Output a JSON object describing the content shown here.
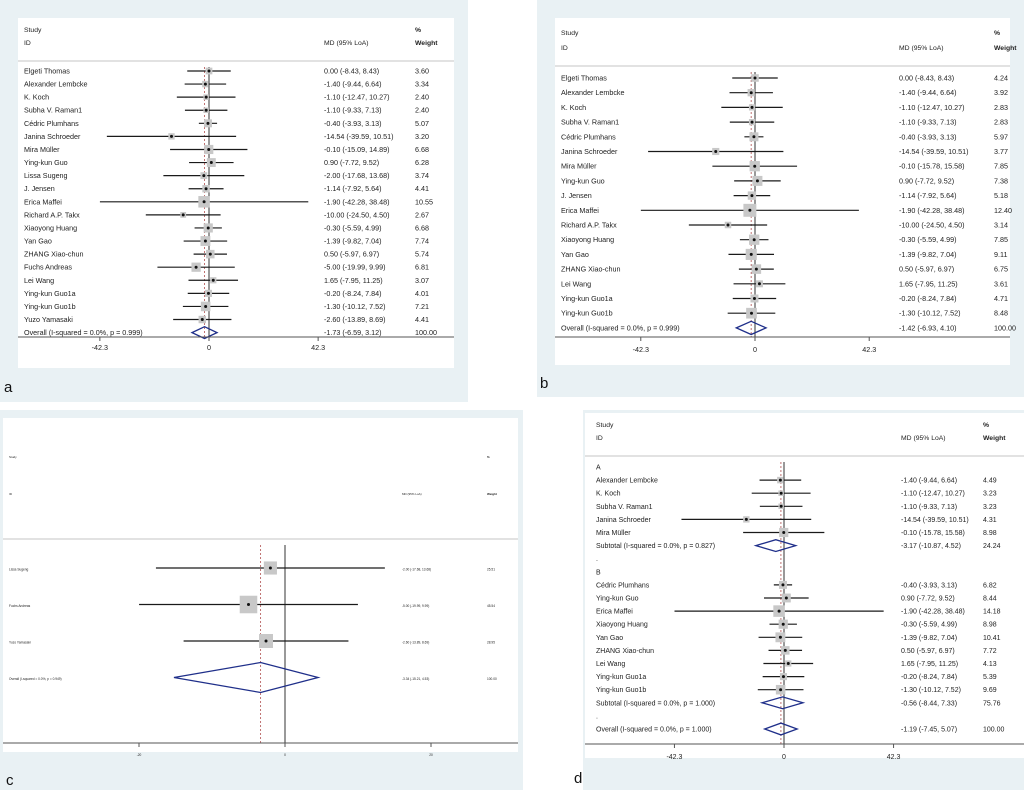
{
  "chart_data": [
    {
      "type": "forest",
      "panel_label": "a",
      "header": {
        "study": "Study",
        "id": "ID",
        "effect": "MD (95% LoA)",
        "pct": "%",
        "weight": "Weight"
      },
      "xlim": [
        -42.3,
        42.3
      ],
      "xticks": [
        "-42.3",
        "0",
        "42.3"
      ],
      "xtick_values": [
        -42.3,
        0,
        42.3
      ],
      "rows": [
        {
          "kind": "study",
          "label": "Elgeti Thomas",
          "md": 0.0,
          "lo": -8.43,
          "hi": 8.43,
          "text": "0.00 (-8.43, 8.43)",
          "weight": "3.60"
        },
        {
          "kind": "study",
          "label": "Alexander Lembcke",
          "md": -1.4,
          "lo": -9.44,
          "hi": 6.64,
          "text": "-1.40 (-9.44, 6.64)",
          "weight": "3.34"
        },
        {
          "kind": "study",
          "label": "K. Koch",
          "md": -1.1,
          "lo": -12.47,
          "hi": 10.27,
          "text": "-1.10 (-12.47, 10.27)",
          "weight": "2.40"
        },
        {
          "kind": "study",
          "label": "Subha V. Raman1",
          "md": -1.1,
          "lo": -9.33,
          "hi": 7.13,
          "text": "-1.10 (-9.33, 7.13)",
          "weight": "2.40"
        },
        {
          "kind": "study",
          "label": "Cédric Plumhans",
          "md": -0.4,
          "lo": -3.93,
          "hi": 3.13,
          "text": "-0.40 (-3.93, 3.13)",
          "weight": "5.07"
        },
        {
          "kind": "study",
          "label": "Janina Schroeder",
          "md": -14.54,
          "lo": -39.59,
          "hi": 10.51,
          "text": "-14.54 (-39.59, 10.51)",
          "weight": "3.20"
        },
        {
          "kind": "study",
          "label": "Mira Müller",
          "md": -0.1,
          "lo": -15.09,
          "hi": 14.89,
          "text": "-0.10 (-15.09, 14.89)",
          "weight": "6.68"
        },
        {
          "kind": "study",
          "label": "Ying-kun Guo",
          "md": 0.9,
          "lo": -7.72,
          "hi": 9.52,
          "text": "0.90 (-7.72, 9.52)",
          "weight": "6.28"
        },
        {
          "kind": "study",
          "label": "Lissa Sugeng",
          "md": -2.0,
          "lo": -17.68,
          "hi": 13.68,
          "text": "-2.00 (-17.68, 13.68)",
          "weight": "3.74"
        },
        {
          "kind": "study",
          "label": "J. Jensen",
          "md": -1.14,
          "lo": -7.92,
          "hi": 5.64,
          "text": "-1.14 (-7.92, 5.64)",
          "weight": "4.41"
        },
        {
          "kind": "study",
          "label": "Erica Maffei",
          "md": -1.9,
          "lo": -42.28,
          "hi": 38.48,
          "text": "-1.90 (-42.28, 38.48)",
          "weight": "10.55"
        },
        {
          "kind": "study",
          "label": "Richard A.P. Takx",
          "md": -10.0,
          "lo": -24.5,
          "hi": 4.5,
          "text": "-10.00 (-24.50, 4.50)",
          "weight": "2.67"
        },
        {
          "kind": "study",
          "label": "Xiaoyong Huang",
          "md": -0.3,
          "lo": -5.59,
          "hi": 4.99,
          "text": "-0.30 (-5.59, 4.99)",
          "weight": "6.68"
        },
        {
          "kind": "study",
          "label": "Yan Gao",
          "md": -1.39,
          "lo": -9.82,
          "hi": 7.04,
          "text": "-1.39 (-9.82, 7.04)",
          "weight": "7.74"
        },
        {
          "kind": "study",
          "label": "ZHANG Xiao-chun",
          "md": 0.5,
          "lo": -5.97,
          "hi": 6.97,
          "text": "0.50 (-5.97, 6.97)",
          "weight": "5.74"
        },
        {
          "kind": "study",
          "label": "Fuchs Andreas",
          "md": -5.0,
          "lo": -19.99,
          "hi": 9.99,
          "text": "-5.00 (-19.99, 9.99)",
          "weight": "6.81"
        },
        {
          "kind": "study",
          "label": "Lei Wang",
          "md": 1.65,
          "lo": -7.95,
          "hi": 11.25,
          "text": "1.65 (-7.95, 11.25)",
          "weight": "3.07"
        },
        {
          "kind": "study",
          "label": "Ying-kun Guo1a",
          "md": -0.2,
          "lo": -8.24,
          "hi": 7.84,
          "text": "-0.20 (-8.24, 7.84)",
          "weight": "4.01"
        },
        {
          "kind": "study",
          "label": "Ying-kun Guo1b",
          "md": -1.3,
          "lo": -10.12,
          "hi": 7.52,
          "text": "-1.30 (-10.12, 7.52)",
          "weight": "7.21"
        },
        {
          "kind": "study",
          "label": "Yuzo Yamasaki",
          "md": -2.6,
          "lo": -13.89,
          "hi": 8.69,
          "text": "-2.60 (-13.89, 8.69)",
          "weight": "4.41"
        },
        {
          "kind": "overall",
          "label": "Overall  (I-squared = 0.0%, p = 0.999)",
          "md": -1.73,
          "lo": -6.59,
          "hi": 3.12,
          "text": "-1.73 (-6.59, 3.12)",
          "weight": "100.00"
        }
      ]
    },
    {
      "type": "forest",
      "panel_label": "b",
      "header": {
        "study": "Study",
        "id": "ID",
        "effect": "MD (95% LoA)",
        "pct": "%",
        "weight": "Weight"
      },
      "xlim": [
        -42.3,
        42.3
      ],
      "xticks": [
        "-42.3",
        "0",
        "42.3"
      ],
      "xtick_values": [
        -42.3,
        0,
        42.3
      ],
      "rows": [
        {
          "kind": "study",
          "label": "Elgeti Thomas",
          "md": 0.0,
          "lo": -8.43,
          "hi": 8.43,
          "text": "0.00 (-8.43, 8.43)",
          "weight": "4.24"
        },
        {
          "kind": "study",
          "label": "Alexander Lembcke",
          "md": -1.4,
          "lo": -9.44,
          "hi": 6.64,
          "text": "-1.40 (-9.44, 6.64)",
          "weight": "3.92"
        },
        {
          "kind": "study",
          "label": "K. Koch",
          "md": -1.1,
          "lo": -12.47,
          "hi": 10.27,
          "text": "-1.10 (-12.47, 10.27)",
          "weight": "2.83"
        },
        {
          "kind": "study",
          "label": "Subha V. Raman1",
          "md": -1.1,
          "lo": -9.33,
          "hi": 7.13,
          "text": "-1.10 (-9.33, 7.13)",
          "weight": "2.83"
        },
        {
          "kind": "study",
          "label": "Cédric Plumhans",
          "md": -0.4,
          "lo": -3.93,
          "hi": 3.13,
          "text": "-0.40 (-3.93, 3.13)",
          "weight": "5.97"
        },
        {
          "kind": "study",
          "label": "Janina Schroeder",
          "md": -14.54,
          "lo": -39.59,
          "hi": 10.51,
          "text": "-14.54 (-39.59, 10.51)",
          "weight": "3.77"
        },
        {
          "kind": "study",
          "label": "Mira Müller",
          "md": -0.1,
          "lo": -15.78,
          "hi": 15.58,
          "text": "-0.10 (-15.78, 15.58)",
          "weight": "7.85"
        },
        {
          "kind": "study",
          "label": "Ying-kun Guo",
          "md": 0.9,
          "lo": -7.72,
          "hi": 9.52,
          "text": "0.90 (-7.72, 9.52)",
          "weight": "7.38"
        },
        {
          "kind": "study",
          "label": "J. Jensen",
          "md": -1.14,
          "lo": -7.92,
          "hi": 5.64,
          "text": "-1.14 (-7.92, 5.64)",
          "weight": "5.18"
        },
        {
          "kind": "study",
          "label": "Erica Maffei",
          "md": -1.9,
          "lo": -42.28,
          "hi": 38.48,
          "text": "-1.90 (-42.28, 38.48)",
          "weight": "12.40"
        },
        {
          "kind": "study",
          "label": "Richard A.P. Takx",
          "md": -10.0,
          "lo": -24.5,
          "hi": 4.5,
          "text": "-10.00 (-24.50, 4.50)",
          "weight": "3.14"
        },
        {
          "kind": "study",
          "label": "Xiaoyong Huang",
          "md": -0.3,
          "lo": -5.59,
          "hi": 4.99,
          "text": "-0.30 (-5.59, 4.99)",
          "weight": "7.85"
        },
        {
          "kind": "study",
          "label": "Yan Gao",
          "md": -1.39,
          "lo": -9.82,
          "hi": 7.04,
          "text": "-1.39 (-9.82, 7.04)",
          "weight": "9.11"
        },
        {
          "kind": "study",
          "label": "ZHANG Xiao-chun",
          "md": 0.5,
          "lo": -5.97,
          "hi": 6.97,
          "text": "0.50 (-5.97, 6.97)",
          "weight": "6.75"
        },
        {
          "kind": "study",
          "label": "Lei Wang",
          "md": 1.65,
          "lo": -7.95,
          "hi": 11.25,
          "text": "1.65 (-7.95, 11.25)",
          "weight": "3.61"
        },
        {
          "kind": "study",
          "label": "Ying-kun Guo1a",
          "md": -0.2,
          "lo": -8.24,
          "hi": 7.84,
          "text": "-0.20 (-8.24, 7.84)",
          "weight": "4.71"
        },
        {
          "kind": "study",
          "label": "Ying-kun Guo1b",
          "md": -1.3,
          "lo": -10.12,
          "hi": 7.52,
          "text": "-1.30 (-10.12, 7.52)",
          "weight": "8.48"
        },
        {
          "kind": "overall",
          "label": "Overall  (I-squared = 0.0%, p = 0.999)",
          "md": -1.42,
          "lo": -6.93,
          "hi": 4.1,
          "text": "-1.42 (-6.93, 4.10)",
          "weight": "100.00"
        }
      ]
    },
    {
      "type": "forest",
      "panel_label": "c",
      "header": {
        "study": "Study",
        "id": "ID",
        "effect": "MD (95% LoA)",
        "pct": "%",
        "weight": "Weight"
      },
      "xlim": [
        -20,
        20
      ],
      "xticks": [
        "-20",
        "0",
        "20"
      ],
      "xtick_values": [
        -20,
        0,
        20
      ],
      "rows": [
        {
          "kind": "study",
          "label": "Lissa Sugeng",
          "md": -2.0,
          "lo": -17.68,
          "hi": 13.68,
          "text": "-2.00 (-17.68, 13.68)",
          "weight": "25.51"
        },
        {
          "kind": "study",
          "label": "Fuchs Andreas",
          "md": -5.0,
          "lo": -19.99,
          "hi": 9.99,
          "text": "-5.00 (-19.99, 9.99)",
          "weight": "45.54"
        },
        {
          "kind": "study",
          "label": "Yuzo Yamasaki",
          "md": -2.6,
          "lo": -13.89,
          "hi": 8.69,
          "text": "-2.60 (-13.89, 8.69)",
          "weight": "28.95"
        },
        {
          "kind": "overall",
          "label": "Overall  (I-squared = 0.0%, p = 0.949)",
          "md": -3.34,
          "lo": -15.21,
          "hi": 4.53,
          "text": "-3.34 (-15.21, 4.53)",
          "weight": "100.00"
        }
      ]
    },
    {
      "type": "forest",
      "panel_label": "d",
      "header": {
        "study": "Study",
        "id": "ID",
        "effect": "MD (95% LoA)",
        "pct": "%",
        "weight": "Weight"
      },
      "xlim": [
        -42.3,
        42.3
      ],
      "xticks": [
        "-42.3",
        "0",
        "42.3"
      ],
      "xtick_values": [
        -42.3,
        0,
        42.3
      ],
      "rows": [
        {
          "kind": "group",
          "label": "A"
        },
        {
          "kind": "study",
          "label": "Alexander Lembcke",
          "md": -1.4,
          "lo": -9.44,
          "hi": 6.64,
          "text": "-1.40 (-9.44, 6.64)",
          "weight": "4.49"
        },
        {
          "kind": "study",
          "label": "K. Koch",
          "md": -1.1,
          "lo": -12.47,
          "hi": 10.27,
          "text": "-1.10 (-12.47, 10.27)",
          "weight": "3.23"
        },
        {
          "kind": "study",
          "label": "Subha V. Raman1",
          "md": -1.1,
          "lo": -9.33,
          "hi": 7.13,
          "text": "-1.10 (-9.33, 7.13)",
          "weight": "3.23"
        },
        {
          "kind": "study",
          "label": "Janina Schroeder",
          "md": -14.54,
          "lo": -39.59,
          "hi": 10.51,
          "text": "-14.54 (-39.59, 10.51)",
          "weight": "4.31"
        },
        {
          "kind": "study",
          "label": "Mira Müller",
          "md": -0.1,
          "lo": -15.78,
          "hi": 15.58,
          "text": "-0.10 (-15.78, 15.58)",
          "weight": "8.98"
        },
        {
          "kind": "overall",
          "label": "Subtotal  (I-squared = 0.0%, p = 0.827)",
          "md": -3.17,
          "lo": -10.87,
          "hi": 4.52,
          "text": "-3.17 (-10.87, 4.52)",
          "weight": "24.24"
        },
        {
          "kind": "spacer",
          "label": "."
        },
        {
          "kind": "group",
          "label": "B"
        },
        {
          "kind": "study",
          "label": "Cédric Plumhans",
          "md": -0.4,
          "lo": -3.93,
          "hi": 3.13,
          "text": "-0.40 (-3.93, 3.13)",
          "weight": "6.82"
        },
        {
          "kind": "study",
          "label": "Ying-kun Guo",
          "md": 0.9,
          "lo": -7.72,
          "hi": 9.52,
          "text": "0.90 (-7.72, 9.52)",
          "weight": "8.44"
        },
        {
          "kind": "study",
          "label": "Erica Maffei",
          "md": -1.9,
          "lo": -42.28,
          "hi": 38.48,
          "text": "-1.90 (-42.28, 38.48)",
          "weight": "14.18"
        },
        {
          "kind": "study",
          "label": "Xiaoyong Huang",
          "md": -0.3,
          "lo": -5.59,
          "hi": 4.99,
          "text": "-0.30 (-5.59, 4.99)",
          "weight": "8.98"
        },
        {
          "kind": "study",
          "label": "Yan Gao",
          "md": -1.39,
          "lo": -9.82,
          "hi": 7.04,
          "text": "-1.39 (-9.82, 7.04)",
          "weight": "10.41"
        },
        {
          "kind": "study",
          "label": "ZHANG Xiao-chun",
          "md": 0.5,
          "lo": -5.97,
          "hi": 6.97,
          "text": "0.50 (-5.97, 6.97)",
          "weight": "7.72"
        },
        {
          "kind": "study",
          "label": "Lei Wang",
          "md": 1.65,
          "lo": -7.95,
          "hi": 11.25,
          "text": "1.65 (-7.95, 11.25)",
          "weight": "4.13"
        },
        {
          "kind": "study",
          "label": "Ying-kun Guo1a",
          "md": -0.2,
          "lo": -8.24,
          "hi": 7.84,
          "text": "-0.20 (-8.24, 7.84)",
          "weight": "5.39"
        },
        {
          "kind": "study",
          "label": "Ying-kun Guo1b",
          "md": -1.3,
          "lo": -10.12,
          "hi": 7.52,
          "text": "-1.30 (-10.12, 7.52)",
          "weight": "9.69"
        },
        {
          "kind": "overall",
          "label": "Subtotal  (I-squared = 0.0%, p = 1.000)",
          "md": -0.56,
          "lo": -8.44,
          "hi": 7.33,
          "text": "-0.56 (-8.44, 7.33)",
          "weight": "75.76"
        },
        {
          "kind": "spacer",
          "label": "."
        },
        {
          "kind": "overall",
          "label": "Overall  (I-squared = 0.0%, p = 1.000)",
          "md": -1.19,
          "lo": -7.45,
          "hi": 5.07,
          "text": "-1.19 (-7.45, 5.07)",
          "weight": "100.00"
        }
      ]
    }
  ],
  "colors": {
    "frame_bg": "#e9f1f4",
    "plot_bg": "#ffffff",
    "diamond": "#1f2f8a",
    "ci_line": "#1a1a1a",
    "weight_box": "#c8c8c8",
    "ref_dashed": "#b05050",
    "zero_line": "#333333"
  }
}
